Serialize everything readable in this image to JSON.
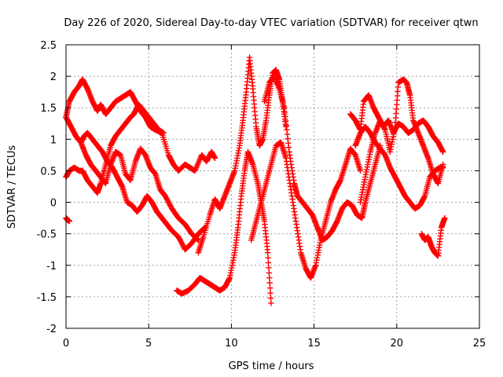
{
  "chart_data": {
    "type": "scatter",
    "title": "Day 226 of 2020, Sidereal Day-to-day VTEC variation (SDTVAR) for receiver qtwn",
    "xlabel": "GPS time / hours",
    "ylabel": "SDTVAR / TECUs",
    "xlim": [
      0,
      25
    ],
    "ylim": [
      -2,
      2.5
    ],
    "xticks": [
      0,
      5,
      10,
      15,
      20,
      25
    ],
    "yticks": [
      -2,
      -1.5,
      -1,
      -0.5,
      0,
      0.5,
      1,
      1.5,
      2,
      2.5
    ],
    "xtick_labels": [
      "0",
      "5",
      "10",
      "15",
      "20",
      "25"
    ],
    "ytick_labels": [
      "-2",
      "-1.5",
      "-1",
      "-0.5",
      "0",
      "0.5",
      "1",
      "1.5",
      "2",
      "2.5"
    ],
    "grid": true,
    "marker": "+",
    "color": "#ff0000",
    "series": [
      {
        "name": "trace 1",
        "x": [
          0.0,
          0.2,
          0.5,
          0.8,
          1.0,
          1.3,
          1.6,
          1.9,
          2.1,
          2.4,
          2.7,
          3.0,
          3.3,
          3.6,
          3.9,
          4.2,
          4.5,
          4.8,
          5.1,
          5.4,
          5.8,
          6.2,
          6.5,
          6.8,
          7.2,
          7.5,
          7.8,
          8.2,
          8.5,
          8.8,
          9.0
        ],
        "y": [
          1.35,
          1.6,
          1.75,
          1.85,
          1.95,
          1.8,
          1.6,
          1.45,
          1.55,
          1.4,
          1.5,
          1.6,
          1.65,
          1.7,
          1.75,
          1.6,
          1.45,
          1.35,
          1.2,
          1.15,
          1.1,
          0.75,
          0.6,
          0.5,
          0.6,
          0.55,
          0.5,
          0.75,
          0.65,
          0.8,
          0.7
        ]
      },
      {
        "name": "trace 2",
        "x": [
          0.0,
          0.2,
          0.5,
          0.8,
          1.0,
          1.3,
          1.6,
          1.9,
          2.1,
          2.4,
          2.7,
          3.0,
          3.3,
          3.6,
          3.9,
          4.1,
          4.4,
          4.7,
          5.0,
          5.3,
          5.6,
          5.9
        ],
        "y": [
          0.4,
          0.5,
          0.55,
          0.5,
          0.5,
          0.35,
          0.25,
          0.15,
          0.3,
          0.6,
          0.9,
          1.05,
          1.15,
          1.25,
          1.35,
          1.4,
          1.55,
          1.45,
          1.35,
          1.25,
          1.15,
          1.1
        ]
      },
      {
        "name": "trace 3",
        "x": [
          0.0,
          0.3,
          0.6,
          0.9,
          1.2,
          1.5,
          1.8,
          2.1,
          2.4,
          2.7,
          3.0,
          3.3,
          3.6,
          3.9,
          4.2,
          4.5,
          4.8,
          5.1,
          5.4,
          5.7,
          6.0,
          6.4,
          6.8,
          7.2,
          7.6,
          8.0
        ],
        "y": [
          1.35,
          1.2,
          1.05,
          0.95,
          0.75,
          0.6,
          0.5,
          0.4,
          0.3,
          0.6,
          0.8,
          0.75,
          0.45,
          0.35,
          0.65,
          0.85,
          0.75,
          0.55,
          0.45,
          0.2,
          0.1,
          -0.1,
          -0.25,
          -0.35,
          -0.5,
          -0.6
        ]
      },
      {
        "name": "trace 4",
        "x": [
          0.9,
          1.1,
          1.3,
          1.6,
          1.9,
          2.2,
          2.5,
          2.8,
          3.1,
          3.4,
          3.7,
          4.0,
          4.3,
          4.6,
          4.9,
          5.2,
          5.5,
          5.8,
          6.1,
          6.4,
          6.8,
          7.2,
          7.6,
          8.0,
          8.4
        ],
        "y": [
          0.95,
          1.05,
          1.1,
          1.0,
          0.9,
          0.8,
          0.65,
          0.55,
          0.4,
          0.25,
          0.0,
          -0.05,
          -0.15,
          -0.05,
          0.1,
          0.0,
          -0.15,
          -0.25,
          -0.35,
          -0.45,
          -0.55,
          -0.75,
          -0.65,
          -0.5,
          -0.4
        ]
      },
      {
        "name": "trace 5",
        "x": [
          6.7,
          7.0,
          7.4,
          7.8,
          8.1,
          8.4,
          8.7,
          9.0,
          9.3,
          9.6,
          9.9,
          10.2,
          10.4,
          10.6,
          10.8,
          11.0,
          11.3,
          11.6,
          11.8,
          12.0,
          12.2,
          12.4
        ],
        "y": [
          -1.4,
          -1.45,
          -1.4,
          -1.3,
          -1.2,
          -1.25,
          -1.3,
          -1.35,
          -1.4,
          -1.35,
          -1.2,
          -0.8,
          -0.4,
          0.1,
          0.5,
          0.8,
          0.6,
          0.3,
          0.0,
          -0.3,
          -0.8,
          -1.6
        ]
      },
      {
        "name": "trace 6",
        "x": [
          8.0,
          8.3,
          8.7,
          9.0,
          9.3,
          9.6,
          9.9,
          10.2,
          10.5,
          10.7,
          10.9,
          11.1,
          11.3,
          11.5,
          11.7,
          11.9,
          12.1,
          12.3,
          12.5,
          12.7,
          12.9,
          13.1,
          13.3
        ],
        "y": [
          -0.8,
          -0.55,
          -0.2,
          0.05,
          -0.1,
          0.1,
          0.3,
          0.5,
          0.9,
          1.3,
          1.75,
          2.3,
          1.8,
          1.2,
          0.9,
          1.0,
          1.3,
          1.7,
          2.05,
          2.1,
          1.95,
          1.6,
          1.2
        ]
      },
      {
        "name": "trace 7",
        "x": [
          11.2,
          11.5,
          11.8,
          12.1,
          12.4,
          12.7,
          13.0,
          13.3,
          13.6,
          13.9,
          14.2,
          14.5,
          14.8,
          15.1,
          15.4,
          15.7,
          16.0,
          16.3,
          16.6,
          16.9,
          17.2,
          17.5,
          17.8
        ],
        "y": [
          -0.6,
          -0.3,
          0.0,
          0.3,
          0.6,
          0.9,
          0.95,
          0.7,
          0.2,
          -0.3,
          -0.8,
          -1.05,
          -1.2,
          -1.0,
          -0.6,
          -0.3,
          0.0,
          0.2,
          0.35,
          0.6,
          0.85,
          0.75,
          0.5
        ]
      },
      {
        "name": "trace 8",
        "x": [
          12.0,
          12.3,
          12.6,
          12.9,
          13.2,
          13.5,
          13.8,
          14.0,
          14.3,
          14.6,
          14.9,
          15.2,
          15.5,
          15.8,
          16.1,
          16.4,
          16.7,
          17.0,
          17.3,
          17.6,
          17.9,
          18.1,
          18.4,
          18.7,
          19.0
        ],
        "y": [
          1.6,
          1.9,
          2.0,
          1.8,
          1.5,
          0.8,
          0.3,
          0.1,
          0.0,
          -0.1,
          -0.2,
          -0.4,
          -0.6,
          -0.55,
          -0.45,
          -0.3,
          -0.1,
          0.0,
          -0.05,
          -0.2,
          -0.25,
          0.0,
          0.3,
          0.6,
          0.9
        ]
      },
      {
        "name": "trace 9",
        "x": [
          17.2,
          17.5,
          17.8,
          18.0,
          18.3,
          18.6,
          18.9,
          19.2,
          19.5,
          19.8,
          20.1,
          20.4,
          20.7,
          21.0,
          21.3,
          21.6,
          21.9,
          22.2,
          22.5,
          22.8
        ],
        "y": [
          1.4,
          1.3,
          1.15,
          1.6,
          1.7,
          1.5,
          1.35,
          1.2,
          1.3,
          1.1,
          1.25,
          1.2,
          1.1,
          1.15,
          1.25,
          1.3,
          1.2,
          1.05,
          0.95,
          0.8
        ]
      },
      {
        "name": "trace 10",
        "x": [
          17.8,
          18.1,
          18.4,
          18.7,
          19.0,
          19.3,
          19.6,
          19.9,
          20.1,
          20.4,
          20.6,
          20.8,
          21.0,
          21.3,
          21.6,
          21.9,
          22.2,
          22.5,
          22.8
        ],
        "y": [
          0.0,
          0.4,
          0.8,
          1.1,
          1.3,
          1.15,
          0.8,
          1.2,
          1.9,
          1.95,
          1.9,
          1.7,
          1.3,
          1.1,
          0.9,
          0.7,
          0.45,
          0.3,
          0.6
        ]
      },
      {
        "name": "trace 11",
        "x": [
          17.5,
          17.8,
          18.1,
          18.4,
          18.7,
          19.0,
          19.3,
          19.6,
          19.9,
          20.2,
          20.5,
          20.8,
          21.1,
          21.4,
          21.7,
          22.0,
          22.3,
          22.6,
          22.8
        ],
        "y": [
          0.9,
          1.1,
          1.2,
          1.1,
          0.95,
          0.85,
          0.75,
          0.55,
          0.4,
          0.25,
          0.1,
          0.0,
          -0.1,
          -0.05,
          0.1,
          0.4,
          0.5,
          0.55,
          0.55
        ]
      },
      {
        "name": "trace 12",
        "x": [
          21.5,
          21.7,
          21.9,
          22.1,
          22.3,
          22.5,
          22.7,
          22.9
        ],
        "y": [
          -0.5,
          -0.6,
          -0.55,
          -0.7,
          -0.8,
          -0.85,
          -0.4,
          -0.25
        ]
      },
      {
        "name": "trace 13",
        "x": [
          0.0,
          0.1,
          0.2
        ],
        "y": [
          -0.25,
          -0.28,
          -0.3
        ]
      }
    ]
  }
}
